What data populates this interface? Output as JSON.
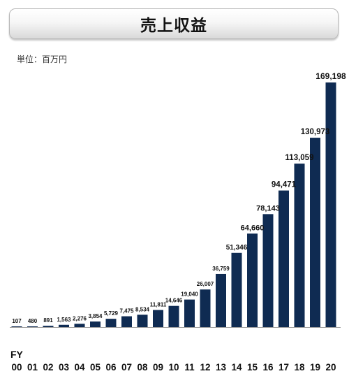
{
  "title": "売上収益",
  "unit_label": "単位：百万円",
  "colors": {
    "bar": "#0f2b52",
    "axis": "#999999",
    "text": "#111111"
  },
  "chart_data": {
    "type": "bar",
    "title": "売上収益",
    "xlabel": "FY",
    "ylabel": "単位：百万円",
    "categories": [
      "00",
      "01",
      "02",
      "03",
      "04",
      "05",
      "06",
      "07",
      "08",
      "09",
      "10",
      "11",
      "12",
      "13",
      "14",
      "15",
      "16",
      "17",
      "18",
      "19",
      "20"
    ],
    "values": [
      107,
      480,
      891,
      1563,
      2276,
      3854,
      5729,
      7475,
      8534,
      11811,
      14646,
      19040,
      26007,
      36759,
      51346,
      64660,
      78143,
      94471,
      113059,
      130973,
      169198
    ],
    "value_labels": [
      "107",
      "480",
      "891",
      "1,563",
      "2,276",
      "3,854",
      "5,729",
      "7,475",
      "8,534",
      "11,811",
      "14,646",
      "19,040",
      "26,007",
      "36,759",
      "51,346",
      "64,660",
      "78,143",
      "94,471",
      "113,059",
      "130,973",
      "169,198"
    ],
    "ylim": [
      0,
      169198
    ],
    "grid": false,
    "legend": "none"
  }
}
